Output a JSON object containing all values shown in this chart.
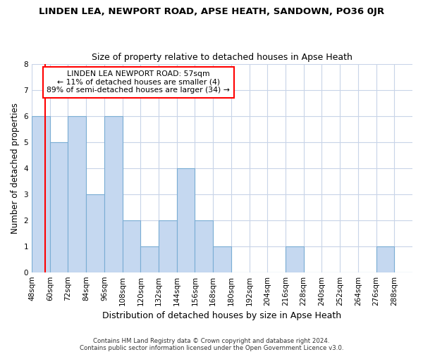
{
  "title": "LINDEN LEA, NEWPORT ROAD, APSE HEATH, SANDOWN, PO36 0JR",
  "subtitle": "Size of property relative to detached houses in Apse Heath",
  "xlabel": "Distribution of detached houses by size in Apse Heath",
  "ylabel": "Number of detached properties",
  "footnote1": "Contains HM Land Registry data © Crown copyright and database right 2024.",
  "footnote2": "Contains public sector information licensed under the Open Government Licence v3.0.",
  "bins": [
    "48sqm",
    "60sqm",
    "72sqm",
    "84sqm",
    "96sqm",
    "108sqm",
    "120sqm",
    "132sqm",
    "144sqm",
    "156sqm",
    "168sqm",
    "180sqm",
    "192sqm",
    "204sqm",
    "216sqm",
    "228sqm",
    "240sqm",
    "252sqm",
    "264sqm",
    "276sqm",
    "288sqm"
  ],
  "values": [
    6,
    5,
    6,
    3,
    6,
    2,
    1,
    2,
    4,
    2,
    1,
    0,
    0,
    0,
    1,
    0,
    0,
    0,
    0,
    1,
    0
  ],
  "bar_color": "#c5d8f0",
  "bar_edge_color": "#7aadd4",
  "annotation_line1": "LINDEN LEA NEWPORT ROAD: 57sqm",
  "annotation_line2": "← 11% of detached houses are smaller (4)",
  "annotation_line3": "89% of semi-detached houses are larger (34) →",
  "redline_x": 0,
  "ylim": [
    0,
    8
  ],
  "yticks": [
    0,
    1,
    2,
    3,
    4,
    5,
    6,
    7,
    8
  ],
  "background_color": "#ffffff",
  "grid_color": "#c8d4e8"
}
